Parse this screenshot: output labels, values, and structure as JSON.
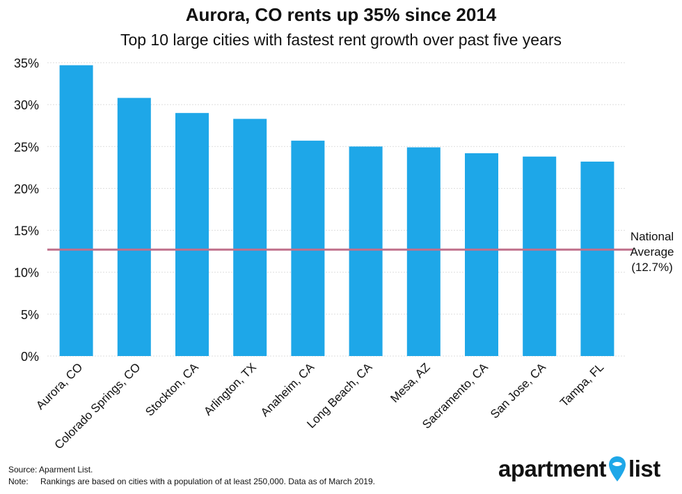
{
  "chart_data": {
    "type": "bar",
    "title": "Aurora, CO rents up 35% since 2014",
    "subtitle": "Top 10 large cities with fastest rent growth over past five years",
    "categories": [
      "Aurora, CO",
      "Colorado Springs, CO",
      "Stockton, CA",
      "Arlington, TX",
      "Anaheim, CA",
      "Long Beach, CA",
      "Mesa, AZ",
      "Sacramento, CA",
      "San Jose, CA",
      "Tampa, FL"
    ],
    "values": [
      34.7,
      30.8,
      29.0,
      28.3,
      25.7,
      25.0,
      24.9,
      24.2,
      23.8,
      23.2
    ],
    "ylim": [
      0,
      35
    ],
    "yticks": [
      "0%",
      "5%",
      "10%",
      "15%",
      "20%",
      "25%",
      "30%",
      "35%"
    ],
    "ytick_values": [
      0,
      5,
      10,
      15,
      20,
      25,
      30,
      35
    ],
    "grid": true,
    "bar_color": "#1ea7e8",
    "reference_line": {
      "value": 12.7,
      "label_lines": [
        "National",
        "Average",
        "(12.7%)"
      ],
      "color": "#c0708b"
    }
  },
  "footer": {
    "source": "Source: Aparment List.",
    "note_label": "Note:",
    "note_text": "Rankings are based on cities with a population of at least 250,000. Data as of March 2019."
  },
  "brand": {
    "word1": "apartment",
    "word2": "list",
    "pin_color": "#1ea7e8"
  }
}
